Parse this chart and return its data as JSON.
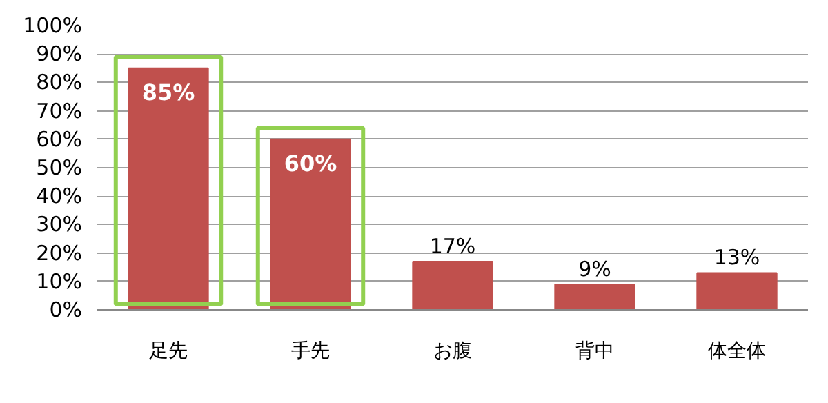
{
  "chart_data": {
    "type": "bar",
    "categories": [
      "足先",
      "手先",
      "お腹",
      "背中",
      "体全体"
    ],
    "values": [
      85,
      60,
      17,
      9,
      13
    ],
    "color": "#c0504d",
    "value_labels": [
      "85%",
      "60%",
      "17%",
      "9%",
      "13%"
    ],
    "ylim": [
      0,
      100
    ],
    "yticks": [
      {
        "value": 0,
        "label": "0%"
      },
      {
        "value": 10,
        "label": "10%"
      },
      {
        "value": 20,
        "label": "20%"
      },
      {
        "value": 30,
        "label": "30%"
      },
      {
        "value": 40,
        "label": "40%"
      },
      {
        "value": 50,
        "label": "50%"
      },
      {
        "value": 60,
        "label": "60%"
      },
      {
        "value": 70,
        "label": "70%"
      },
      {
        "value": 80,
        "label": "80%"
      },
      {
        "value": 90,
        "label": "90%"
      },
      {
        "value": 100,
        "label": "100%"
      }
    ],
    "grid": "y"
  }
}
